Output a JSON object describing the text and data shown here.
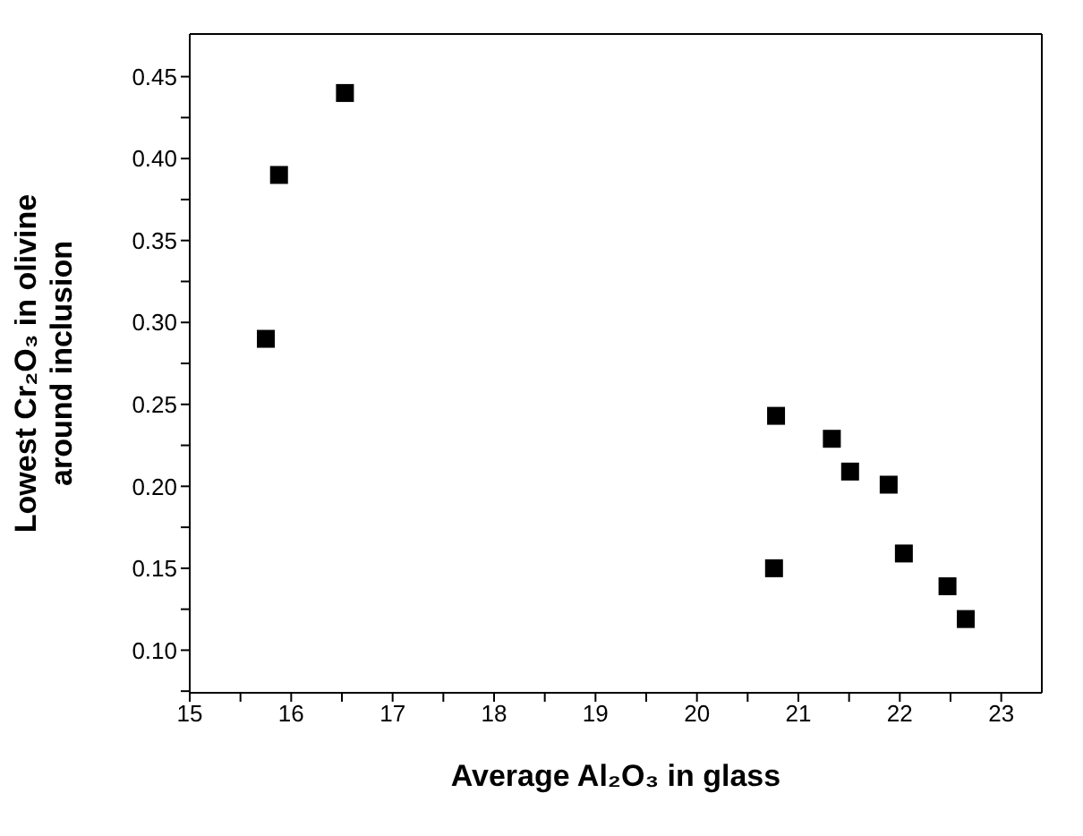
{
  "chart_data": {
    "type": "scatter",
    "xlabel": "Average Al₂O₃ in glass",
    "ylabel": "Lowest Cr₂O₃ in olivine\naround inclusion",
    "x": [
      15.75,
      15.88,
      16.53,
      20.78,
      20.76,
      21.33,
      21.51,
      21.89,
      22.04,
      22.47,
      22.65
    ],
    "series": [
      {
        "color": "#000000",
        "values": [
          0.29,
          0.39,
          0.44,
          0.243,
          0.15,
          0.229,
          0.209,
          0.201,
          0.159,
          0.139,
          0.119
        ]
      }
    ],
    "marker": "square",
    "xlim": [
      15,
      23.4
    ],
    "xticks": [
      15,
      {
        "value": 15.5,
        "label": null
      },
      16,
      {
        "value": 16.5,
        "label": null
      },
      17,
      {
        "value": 17.5,
        "label": null
      },
      18,
      {
        "value": 18.5,
        "label": null
      },
      19,
      {
        "value": 19.5,
        "label": null
      },
      20,
      {
        "value": 20.5,
        "label": null
      },
      21,
      {
        "value": 21.5,
        "label": null
      },
      22,
      {
        "value": 22.5,
        "label": null
      },
      23
    ],
    "ylim": [
      0.074,
      0.476
    ],
    "yticks": [
      {
        "value": 0.075,
        "label": null
      },
      {
        "value": 0.1,
        "label": "0.10"
      },
      {
        "value": 0.125,
        "label": null
      },
      {
        "value": 0.15,
        "label": "0.15"
      },
      {
        "value": 0.175,
        "label": null
      },
      {
        "value": 0.2,
        "label": "0.20"
      },
      {
        "value": 0.225,
        "label": null
      },
      {
        "value": 0.25,
        "label": "0.25"
      },
      {
        "value": 0.275,
        "label": null
      },
      {
        "value": 0.3,
        "label": "0.30"
      },
      {
        "value": 0.325,
        "label": null
      },
      {
        "value": 0.35,
        "label": "0.35"
      },
      {
        "value": 0.375,
        "label": null
      },
      {
        "value": 0.4,
        "label": "0.40"
      },
      {
        "value": 0.425,
        "label": null
      },
      {
        "value": 0.45,
        "label": "0.45"
      }
    ],
    "legend": false
  }
}
